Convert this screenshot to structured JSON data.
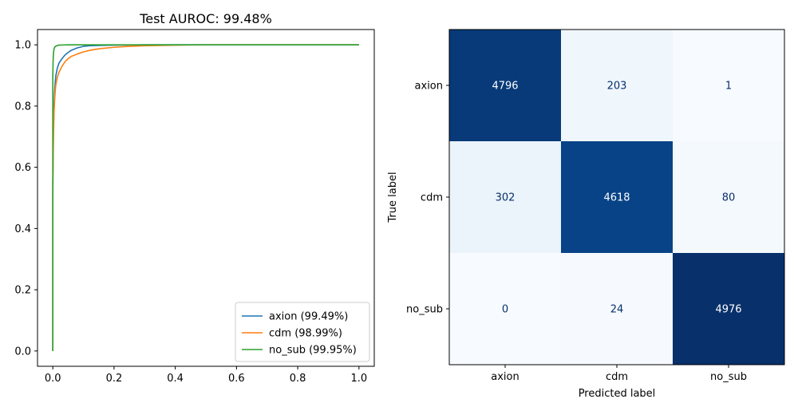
{
  "chart_data": [
    {
      "type": "line",
      "title": "Test AUROC: 99.48%",
      "xlabel": "",
      "ylabel": "",
      "xlim": [
        -0.05,
        1.05
      ],
      "ylim": [
        -0.05,
        1.05
      ],
      "x_ticks": [
        "0.0",
        "0.2",
        "0.4",
        "0.6",
        "0.8",
        "1.0"
      ],
      "y_ticks": [
        "0.0",
        "0.2",
        "0.4",
        "0.6",
        "0.8",
        "1.0"
      ],
      "grid": false,
      "legend_position": "lower-right",
      "series": [
        {
          "name": "axion (99.49%)",
          "color": "#1f77b4",
          "x": [
            0,
            0,
            0.002,
            0.004,
            0.006,
            0.008,
            0.01,
            0.015,
            0.02,
            0.03,
            0.04,
            0.05,
            0.06,
            0.08,
            0.1,
            0.12,
            0.15,
            0.2,
            0.3,
            0.5,
            1.0
          ],
          "y": [
            0,
            0.55,
            0.72,
            0.8,
            0.85,
            0.88,
            0.9,
            0.925,
            0.94,
            0.955,
            0.967,
            0.975,
            0.982,
            0.99,
            0.995,
            0.997,
            0.998,
            0.999,
            1.0,
            1.0,
            1.0
          ]
        },
        {
          "name": "cdm (98.99%)",
          "color": "#ff7f0e",
          "x": [
            0,
            0,
            0.002,
            0.004,
            0.006,
            0.008,
            0.01,
            0.015,
            0.02,
            0.03,
            0.04,
            0.05,
            0.06,
            0.08,
            0.1,
            0.12,
            0.15,
            0.2,
            0.25,
            0.3,
            0.35,
            0.4,
            0.48,
            1.0
          ],
          "y": [
            0,
            0.5,
            0.7,
            0.78,
            0.82,
            0.85,
            0.87,
            0.895,
            0.91,
            0.93,
            0.945,
            0.955,
            0.962,
            0.97,
            0.977,
            0.982,
            0.987,
            0.992,
            0.995,
            0.997,
            0.998,
            0.999,
            1.0,
            1.0
          ]
        },
        {
          "name": "no_sub (99.95%)",
          "color": "#2ca02c",
          "x": [
            0,
            0,
            0.001,
            0.002,
            0.003,
            0.004,
            0.005,
            0.007,
            0.01,
            0.015,
            0.02,
            0.03,
            0.05,
            0.1,
            1.0
          ],
          "y": [
            0,
            0.9,
            0.95,
            0.97,
            0.98,
            0.985,
            0.99,
            0.993,
            0.996,
            0.998,
            0.999,
            0.9995,
            1.0,
            1.0,
            1.0
          ]
        }
      ]
    },
    {
      "type": "heatmap",
      "title": "",
      "xlabel": "Predicted label",
      "ylabel": "True label",
      "x_categories": [
        "axion",
        "cdm",
        "no_sub"
      ],
      "y_categories": [
        "axion",
        "cdm",
        "no_sub"
      ],
      "values": [
        [
          4796,
          203,
          1
        ],
        [
          302,
          4618,
          80
        ],
        [
          0,
          24,
          4976
        ]
      ],
      "colormap": "Blues",
      "text_color_dark": "#08306b",
      "text_color_light": "#ffffff"
    }
  ]
}
